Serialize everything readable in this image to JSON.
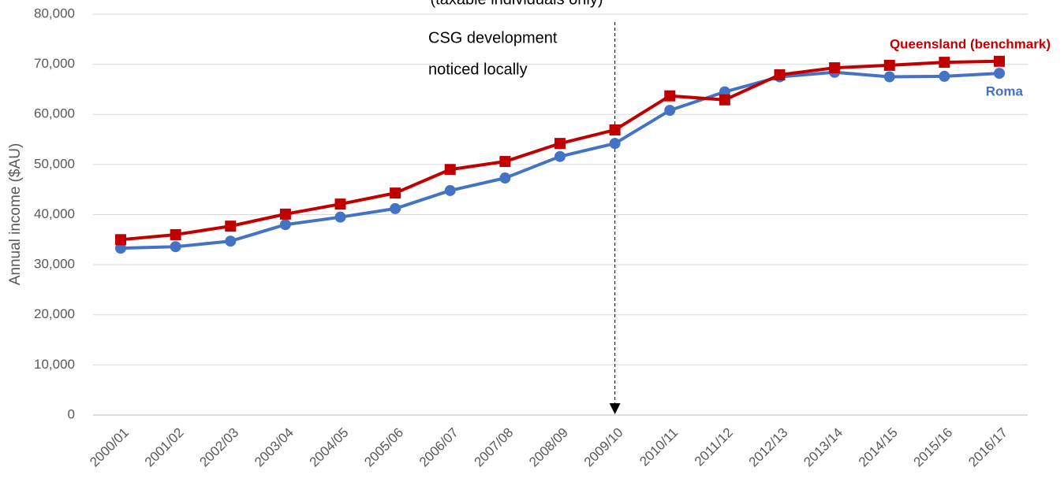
{
  "chart_data": {
    "type": "line",
    "subtitle": "(taxable individuals only)",
    "y_label": "Annual income ($AU)",
    "categories": [
      "2000/01",
      "2001/02",
      "2002/03",
      "2003/04",
      "2004/05",
      "2005/06",
      "2006/07",
      "2007/08",
      "2008/09",
      "2009/10",
      "2010/11",
      "2011/12",
      "2012/13",
      "2013/14",
      "2014/15",
      "2015/16",
      "2016/17"
    ],
    "series": [
      {
        "name": "Queensland (benchmark)",
        "color": "#c00000",
        "marker": "square",
        "values": [
          35000,
          36000,
          37700,
          40100,
          42100,
          44300,
          49000,
          50600,
          54200,
          56900,
          63700,
          62900,
          67900,
          69300,
          69800,
          70400,
          70600
        ]
      },
      {
        "name": "Roma",
        "color": "#4472c4",
        "marker": "circle",
        "values": [
          33300,
          33600,
          34700,
          38000,
          39500,
          41200,
          44800,
          47300,
          51600,
          54200,
          60800,
          64500,
          67500,
          68400,
          67500,
          67600,
          68200
        ]
      }
    ],
    "ylim": [
      0,
      80000
    ],
    "yticks": [
      0,
      {
        "value": 10000,
        "label": "10,000"
      },
      {
        "value": 20000,
        "label": "20,000"
      },
      {
        "value": 30000,
        "label": "30,000"
      },
      {
        "value": 40000,
        "label": "40,000"
      },
      {
        "value": 50000,
        "label": "50,000"
      },
      {
        "value": 60000,
        "label": "60,000"
      },
      {
        "value": 70000,
        "label": "70,000"
      },
      {
        "value": 80000,
        "label": "80,000"
      }
    ],
    "grid": true,
    "annotation": {
      "lines": [
        "CSG development",
        "noticed locally"
      ],
      "at": "2009/10"
    }
  }
}
